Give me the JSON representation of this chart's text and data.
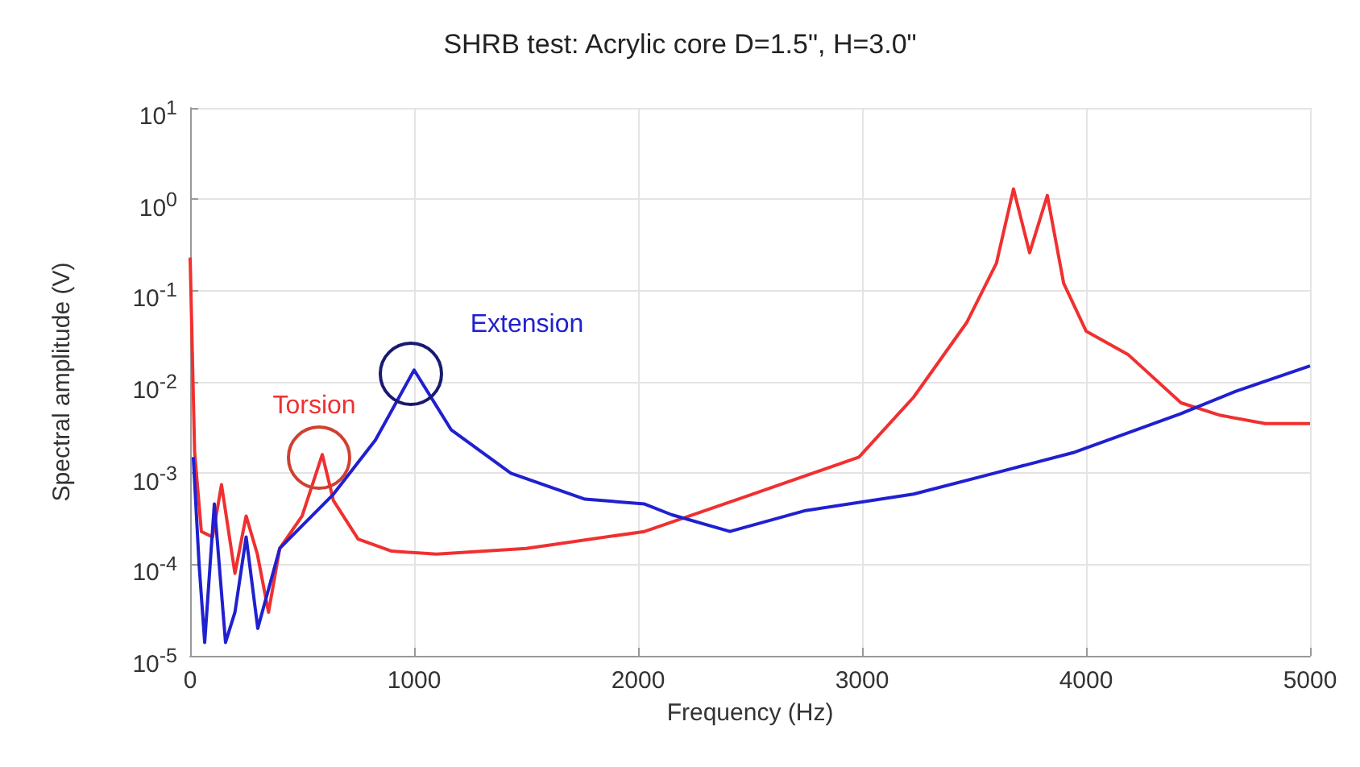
{
  "chart_data": {
    "type": "line",
    "title": "SHRB test: Acrylic core D=1.5\", H=3.0\"",
    "xlabel": "Frequency (Hz)",
    "ylabel": "Spectral amplitude (V)",
    "xlim": [
      0,
      5000
    ],
    "xticks": [
      0,
      1000,
      2000,
      3000,
      4000,
      5000
    ],
    "ylim": [
      1e-05,
      10
    ],
    "yticks": [
      {
        "value": 1e-05,
        "label": "10$^{-5}$"
      },
      {
        "value": 0.0001,
        "label": "10$^{-4}$"
      },
      {
        "value": 0.001,
        "label": "10$^{-3}$"
      },
      {
        "value": 0.01,
        "label": "10$^{-2}$"
      },
      {
        "value": 0.1,
        "label": "10$^{-1}$"
      },
      {
        "value": 1,
        "label": "10$^{0}$"
      },
      {
        "value": 10,
        "label": "10$^{1}$"
      }
    ],
    "log": "y",
    "grid": true,
    "series": [
      {
        "color": "#f03030",
        "x": [
          0,
          20,
          50,
          100,
          140,
          200,
          250,
          300,
          350,
          400,
          500,
          590,
          640,
          750,
          900,
          1100,
          1500,
          2029,
          2511,
          2986,
          3230,
          3468,
          3600,
          3676,
          3748,
          3827,
          3900,
          4000,
          4187,
          4424,
          4600,
          4800,
          5000
        ],
        "values": [
          0.23,
          0.0017,
          0.00023,
          0.0002,
          0.00075,
          8e-05,
          0.00034,
          0.00013,
          3e-05,
          0.00015,
          0.00034,
          0.0016,
          0.0005,
          0.00019,
          0.00014,
          0.00013,
          0.00015,
          0.00023,
          0.00059,
          0.0015,
          0.0068,
          0.045,
          0.2,
          1.3,
          0.26,
          1.1,
          0.12,
          0.036,
          0.02,
          0.0059,
          0.0043,
          0.0035,
          0.0035
        ]
      },
      {
        "color": "#2020d0",
        "x": [
          14,
          40,
          65,
          108,
          158,
          200,
          250,
          302,
          400,
          496,
          640,
          827,
          1000,
          1165,
          1432,
          1763,
          2029,
          2151,
          2410,
          2748,
          3230,
          3590,
          3950,
          4424,
          4669,
          5000
        ],
        "values": [
          0.0015,
          0.0001,
          1.4e-05,
          0.00046,
          1.4e-05,
          3e-05,
          0.0002,
          2e-05,
          0.00015,
          0.00026,
          0.00059,
          0.0023,
          0.0135,
          0.003,
          0.001,
          0.00052,
          0.00046,
          0.00035,
          0.00023,
          0.00039,
          0.00059,
          0.001,
          0.0017,
          0.0045,
          0.0079,
          0.015
        ]
      }
    ],
    "annotations": [
      {
        "text": "Torsion",
        "x": 590,
        "y": 0.0016
      },
      {
        "text": "Extension",
        "x": 1000,
        "y": 0.0135
      }
    ]
  }
}
